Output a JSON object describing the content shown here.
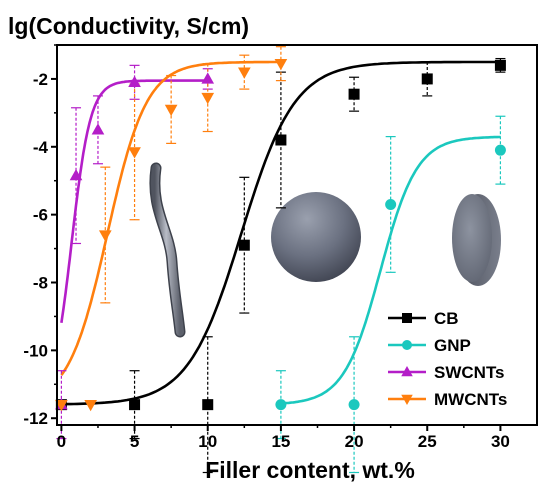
{
  "chart_data": {
    "type": "scatter",
    "title": "lg(Conductivity, S/cm)",
    "xlabel": "Filler content, wt.%",
    "ylabel": "",
    "xlim": [
      -0.3,
      32.5
    ],
    "ylim": [
      -12.2,
      -1.0
    ],
    "xticks": [
      0,
      5,
      10,
      15,
      20,
      25,
      30
    ],
    "yticks": [
      -2,
      -4,
      -6,
      -8,
      -10,
      -12
    ],
    "grid": false,
    "legend_position": "bottom-right",
    "series": [
      {
        "name": "CB",
        "color": "#000000",
        "marker": "square",
        "x": [
          0,
          5,
          10,
          12.5,
          15,
          20,
          25,
          30
        ],
        "y": [
          -11.6,
          -11.6,
          -11.6,
          -6.9,
          -3.8,
          -2.45,
          -2.0,
          -1.6
        ],
        "err": [
          0,
          1.0,
          2.0,
          2.0,
          2.0,
          0.5,
          0.5,
          0.2
        ]
      },
      {
        "name": "GNP",
        "color": "#1BC8BE",
        "marker": "circle",
        "x": [
          15,
          20,
          22.5,
          30
        ],
        "y": [
          -11.6,
          -11.6,
          -5.7,
          -4.1
        ],
        "err": [
          1.0,
          2.0,
          2.0,
          1.0
        ]
      },
      {
        "name": "SWCNTs",
        "color": "#B41EC8",
        "marker": "triangle-up",
        "x": [
          0,
          1,
          2.5,
          5,
          10
        ],
        "y": [
          -11.6,
          -4.85,
          -3.5,
          -2.1,
          -2.0
        ],
        "err": [
          1.0,
          2.0,
          1.0,
          0.5,
          0.3
        ]
      },
      {
        "name": "MWCNTs",
        "color": "#FF7F0E",
        "marker": "triangle-down",
        "x": [
          0,
          2,
          3,
          5,
          7.5,
          10,
          12.5,
          15
        ],
        "y": [
          -11.6,
          -11.6,
          -6.6,
          -4.15,
          -2.9,
          -2.55,
          -1.8,
          -1.55
        ],
        "err": [
          0,
          0,
          2.0,
          2.0,
          1.0,
          1.0,
          0.5,
          0.5
        ]
      }
    ],
    "fit_curves": [
      {
        "series": "CB",
        "bottom": -11.6,
        "top": -1.5,
        "x0": 12.3,
        "k": 0.55,
        "xmin": 0,
        "xmax": 30
      },
      {
        "series": "GNP",
        "bottom": -11.6,
        "top": -3.7,
        "x0": 21.8,
        "k": 0.8,
        "xmin": 15,
        "xmax": 30
      },
      {
        "series": "SWCNTs",
        "bottom": -11.6,
        "top": -2.05,
        "x0": 0.7,
        "k": 1.55,
        "xmin": 0,
        "xmax": 10
      },
      {
        "series": "MWCNTs",
        "bottom": -11.6,
        "top": -1.5,
        "x0": 3.15,
        "k": 0.75,
        "xmin": 0,
        "xmax": 15
      }
    ],
    "illustrations": [
      "fiber",
      "sphere",
      "disk"
    ]
  }
}
